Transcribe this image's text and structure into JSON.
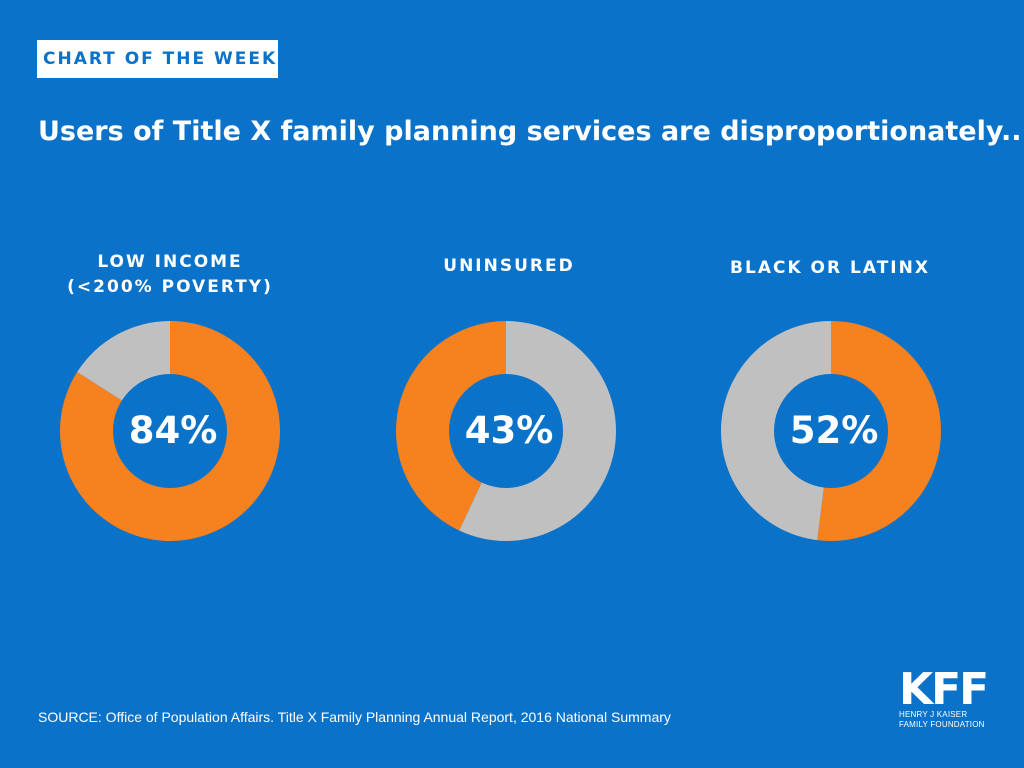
{
  "header": {
    "tag": "CHART OF THE WEEK",
    "title": "Users of Title X family planning services are disproportionately..."
  },
  "chart_data": [
    {
      "type": "pie",
      "label_lines": [
        "LOW INCOME",
        "(<200% POVERTY)"
      ],
      "value": 84,
      "value_label": "84%",
      "slices": [
        {
          "value": 84,
          "color": "#f5821f"
        },
        {
          "value": 16,
          "color": "#c0c0c0"
        }
      ]
    },
    {
      "type": "pie",
      "label_lines": [
        "UNINSURED"
      ],
      "value": 43,
      "value_label": "43%",
      "slices": [
        {
          "value": 43,
          "color": "#f5821f"
        },
        {
          "value": 57,
          "color": "#c0c0c0"
        }
      ]
    },
    {
      "type": "pie",
      "label_lines": [
        "BLACK OR LATINX"
      ],
      "value": 52,
      "value_label": "52%",
      "slices": [
        {
          "value": 52,
          "color": "#f5821f"
        },
        {
          "value": 48,
          "color": "#c0c0c0"
        }
      ]
    }
  ],
  "colors": {
    "background": "#0a72c8",
    "highlight": "#f5821f",
    "remainder": "#c0c0c0"
  },
  "footer": {
    "source": "SOURCE: Office of Population Affairs. Title X Family Planning Annual Report, 2016 National Summary",
    "logo_mark": "KFF",
    "logo_sub_1": "HENRY J KAISER",
    "logo_sub_2": "FAMILY FOUNDATION"
  }
}
